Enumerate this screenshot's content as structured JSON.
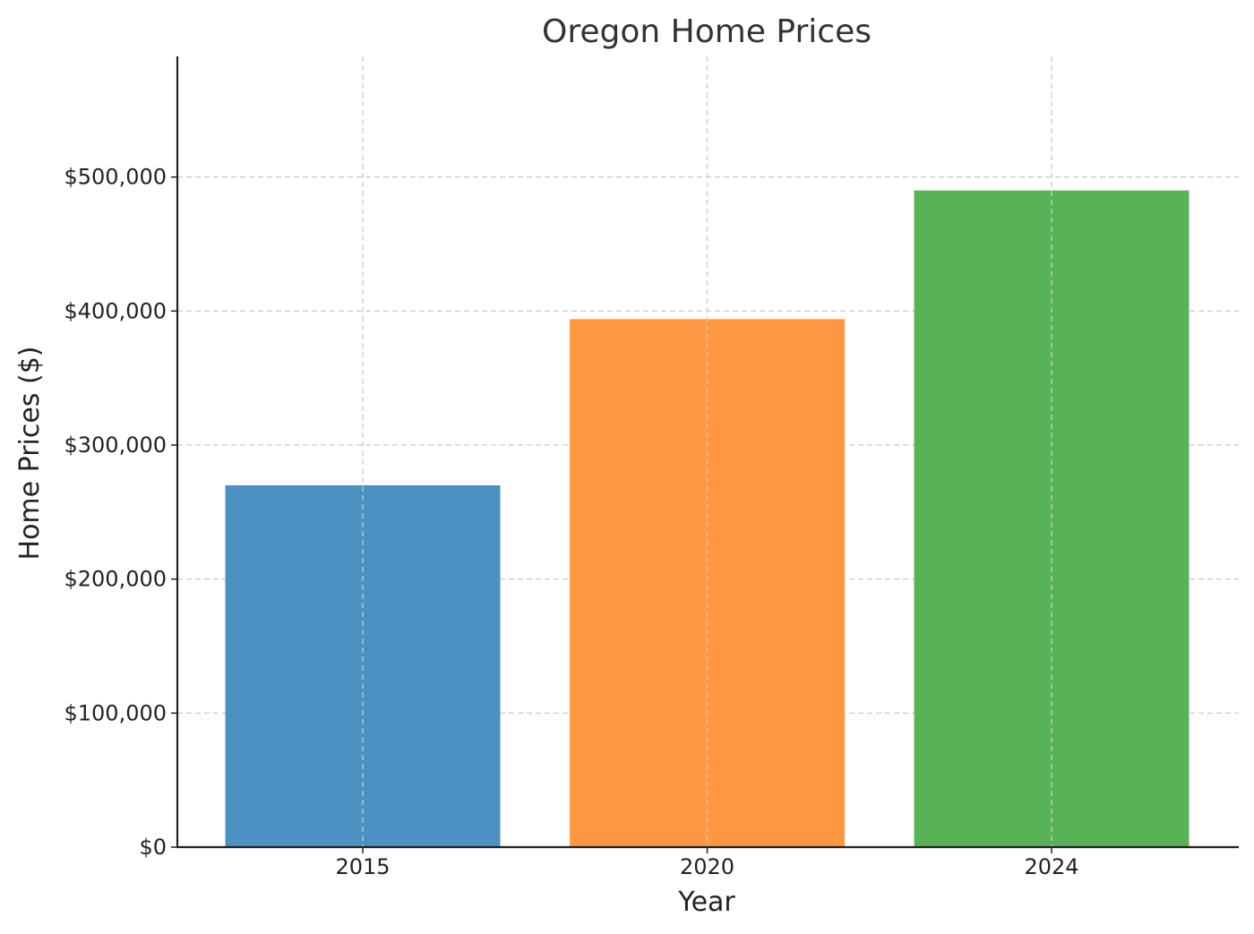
{
  "chart_data": {
    "type": "bar",
    "title": "Oregon Home Prices",
    "xlabel": "Year",
    "ylabel": "Home Prices ($)",
    "categories": [
      "2015",
      "2020",
      "2024"
    ],
    "values": [
      270000,
      394000,
      490000
    ],
    "colors": [
      "#4b91c2",
      "#ff9642",
      "#57b356"
    ],
    "ylim": [
      0,
      590000
    ],
    "yticks": [
      0,
      100000,
      200000,
      300000,
      400000,
      500000
    ],
    "ytick_labels": [
      "$0",
      "$100,000",
      "$200,000",
      "$300,000",
      "$400,000",
      "$500,000"
    ],
    "grid": true,
    "grid_style": "dashed",
    "legend": false
  }
}
